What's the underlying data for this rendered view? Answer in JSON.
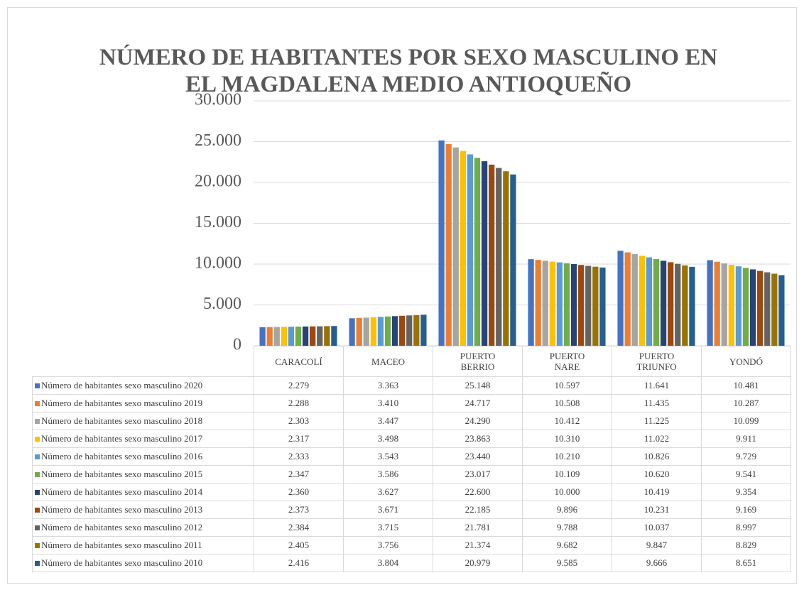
{
  "chart_data": {
    "type": "bar",
    "title": "NÚMERO DE HABITANTES POR SEXO MASCULINO EN EL MAGDALENA MEDIO ANTIOQUEÑO",
    "categories": [
      "CARACOLÍ",
      "MACEO",
      "PUERTO BERRIO",
      "PUERTO NARE",
      "PUERTO TRIUNFO",
      "YONDÓ"
    ],
    "ylim": [
      0,
      30000
    ],
    "yticks": [
      0,
      {
        "value": 5000,
        "label": "5.000"
      },
      {
        "value": 10000,
        "label": "10.000"
      },
      {
        "value": 15000,
        "label": "15.000"
      },
      {
        "value": 20000,
        "label": "20.000"
      },
      {
        "value": 25000,
        "label": "25.000"
      },
      {
        "value": 30000,
        "label": "30.000"
      }
    ],
    "grid": true,
    "series": [
      {
        "name": "Número de habitantes sexo masculino 2020",
        "color": "#4472c4",
        "values": [
          2279,
          3363,
          25148,
          10597,
          11641,
          10481
        ],
        "value_labels": [
          "2.279",
          "3.363",
          "25.148",
          "10.597",
          "11.641",
          "10.481"
        ]
      },
      {
        "name": "Número de habitantes sexo masculino 2019",
        "color": "#ed7d31",
        "values": [
          2288,
          3410,
          24717,
          10508,
          11435,
          10287
        ],
        "value_labels": [
          "2.288",
          "3.410",
          "24.717",
          "10.508",
          "11.435",
          "10.287"
        ]
      },
      {
        "name": "Número de habitantes sexo masculino 2018",
        "color": "#a5a5a5",
        "values": [
          2303,
          3447,
          24290,
          10412,
          11225,
          10099
        ],
        "value_labels": [
          "2.303",
          "3.447",
          "24.290",
          "10.412",
          "11.225",
          "10.099"
        ]
      },
      {
        "name": "Número de habitantes sexo masculino 2017",
        "color": "#ffc000",
        "values": [
          2317,
          3498,
          23863,
          10310,
          11022,
          9911
        ],
        "value_labels": [
          "2.317",
          "3.498",
          "23.863",
          "10.310",
          "11.022",
          "9.911"
        ]
      },
      {
        "name": "Número de habitantes sexo masculino 2016",
        "color": "#5b9bd5",
        "values": [
          2333,
          3543,
          23440,
          10210,
          10826,
          9729
        ],
        "value_labels": [
          "2.333",
          "3.543",
          "23.440",
          "10.210",
          "10.826",
          "9.729"
        ]
      },
      {
        "name": "Número de habitantes sexo masculino 2015",
        "color": "#70ad47",
        "values": [
          2347,
          3586,
          23017,
          10109,
          10620,
          9541
        ],
        "value_labels": [
          "2.347",
          "3.586",
          "23.017",
          "10.109",
          "10.620",
          "9.541"
        ]
      },
      {
        "name": "Número de habitantes sexo masculino 2014",
        "color": "#264478",
        "values": [
          2360,
          3627,
          22600,
          10000,
          10419,
          9354
        ],
        "value_labels": [
          "2.360",
          "3.627",
          "22.600",
          "10.000",
          "10.419",
          "9.354"
        ]
      },
      {
        "name": "Número de habitantes sexo masculino 2013",
        "color": "#9e480e",
        "values": [
          2373,
          3671,
          22185,
          9896,
          10231,
          9169
        ],
        "value_labels": [
          "2.373",
          "3.671",
          "22.185",
          "9.896",
          "10.231",
          "9.169"
        ]
      },
      {
        "name": "Número de habitantes sexo masculino 2012",
        "color": "#636363",
        "values": [
          2384,
          3715,
          21781,
          9788,
          10037,
          8997
        ],
        "value_labels": [
          "2.384",
          "3.715",
          "21.781",
          "9.788",
          "10.037",
          "8.997"
        ]
      },
      {
        "name": "Número de habitantes sexo masculino 2011",
        "color": "#997300",
        "values": [
          2405,
          3756,
          21374,
          9682,
          9847,
          8829
        ],
        "value_labels": [
          "2.405",
          "3.756",
          "21.374",
          "9.682",
          "9.847",
          "8.829"
        ]
      },
      {
        "name": "Número de habitantes sexo masculino 2010",
        "color": "#255e91",
        "values": [
          2416,
          3804,
          20979,
          9585,
          9666,
          8651
        ],
        "value_labels": [
          "2.416",
          "3.804",
          "20.979",
          "9.585",
          "9.666",
          "8.651"
        ]
      }
    ]
  }
}
